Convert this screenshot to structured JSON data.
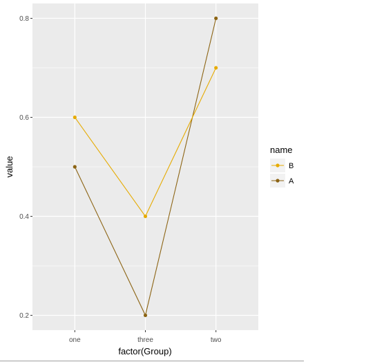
{
  "chart_data": {
    "type": "line",
    "categories": [
      "one",
      "three",
      "two"
    ],
    "series": [
      {
        "name": "B",
        "values": [
          0.6,
          0.4,
          0.7
        ],
        "color": "#E6AB02"
      },
      {
        "name": "A",
        "values": [
          0.5,
          0.2,
          0.8
        ],
        "color": "#8C6414"
      }
    ],
    "xlabel": "factor(Group)",
    "ylabel": "value",
    "ylim": [
      0.17,
      0.83
    ],
    "yticks": [
      0.2,
      0.4,
      0.6,
      0.8
    ],
    "ytick_labels": [
      "0.2",
      "0.4",
      "0.6",
      "0.8"
    ],
    "legend": {
      "title": "name",
      "position": "right"
    },
    "grid": true,
    "panel_background": "#EBEBEB",
    "grid_color": "#FFFFFF"
  }
}
